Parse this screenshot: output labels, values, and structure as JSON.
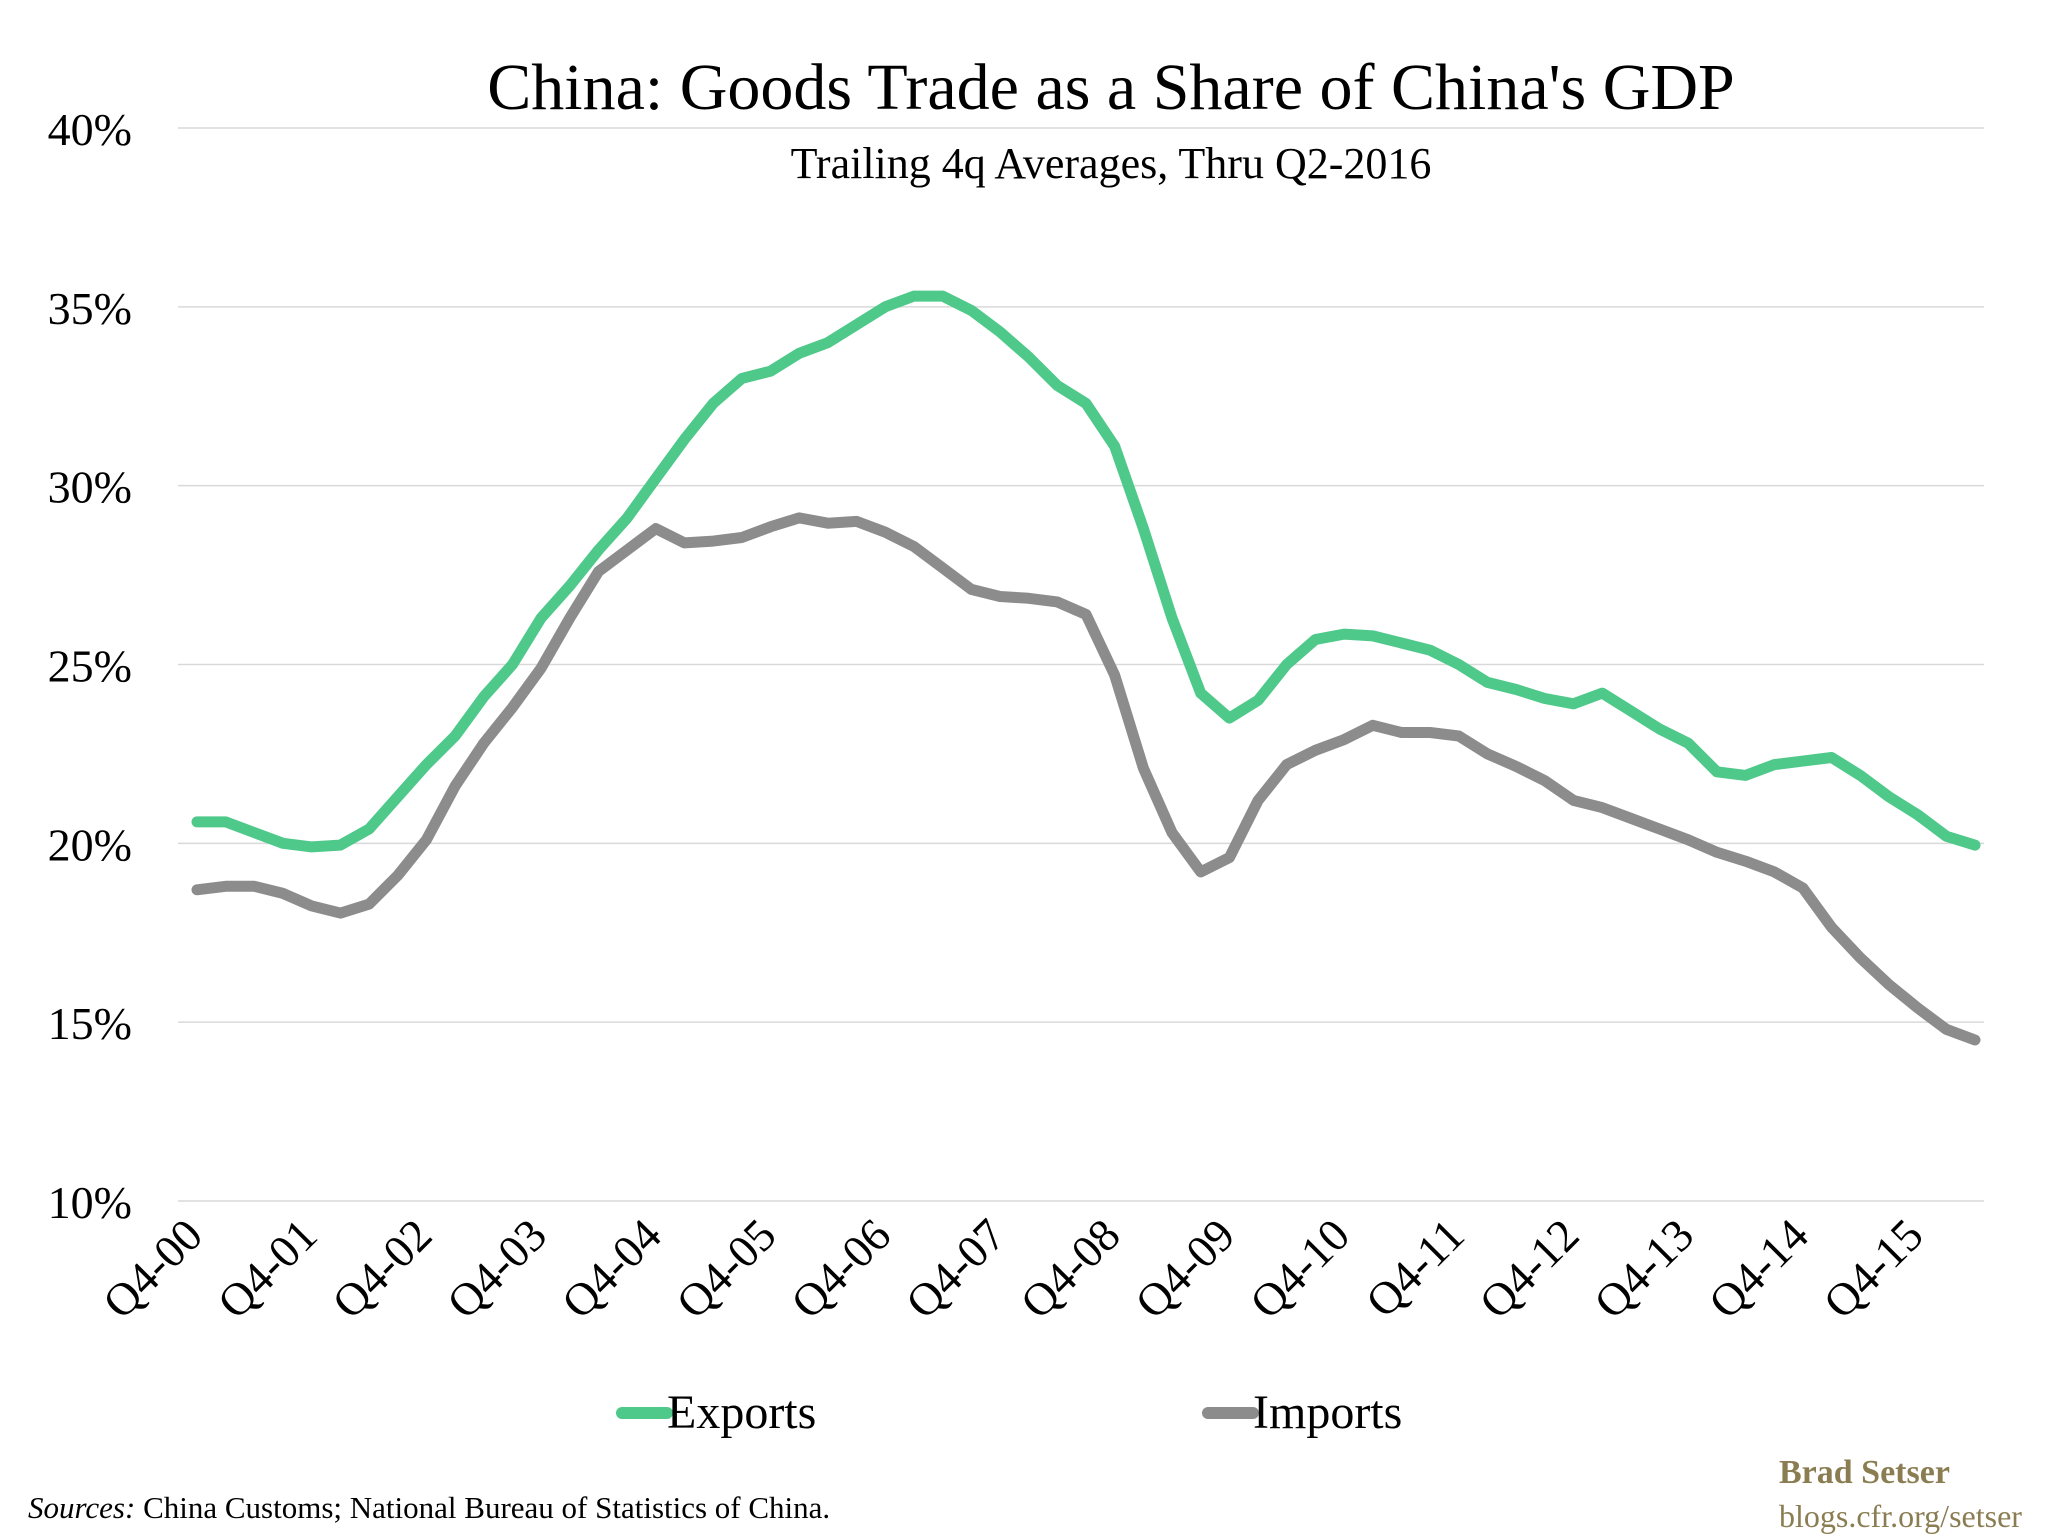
{
  "chart_data": {
    "type": "line",
    "title": "China: Goods Trade as a Share of China's GDP",
    "subtitle": "Trailing 4q Averages, Thru Q2-2016",
    "ylim": [
      10,
      40
    ],
    "y_ticks": [
      "10%",
      "15%",
      "20%",
      "25%",
      "30%",
      "35%",
      "40%"
    ],
    "y_tick_values": [
      10,
      15,
      20,
      25,
      30,
      35,
      40
    ],
    "x_tick_labels": [
      "Q4-00",
      "Q4-01",
      "Q4-02",
      "Q4-03",
      "Q4-04",
      "Q4-05",
      "Q4-06",
      "Q4-07",
      "Q4-08",
      "Q4-09",
      "Q4-10",
      "Q4-11",
      "Q4-12",
      "Q4-13",
      "Q4-14",
      "Q4-15"
    ],
    "x_period_count": 63,
    "grid": true,
    "legend_position": "bottom",
    "series": [
      {
        "name": "Exports",
        "color": "#4ec98a",
        "values": [
          20.6,
          20.6,
          20.3,
          20.0,
          19.9,
          19.95,
          20.4,
          21.3,
          22.2,
          23.0,
          24.1,
          25.0,
          26.3,
          27.2,
          28.2,
          29.1,
          30.2,
          31.3,
          32.3,
          33.0,
          33.2,
          33.7,
          34.0,
          34.5,
          35.0,
          35.3,
          35.3,
          34.9,
          34.3,
          33.6,
          32.8,
          32.3,
          31.1,
          28.8,
          26.3,
          24.2,
          23.5,
          24.0,
          25.0,
          25.7,
          25.85,
          25.8,
          25.6,
          25.4,
          25.0,
          24.5,
          24.3,
          24.05,
          23.9,
          24.2,
          23.7,
          23.2,
          22.8,
          22.0,
          21.9,
          22.2,
          22.3,
          22.4,
          21.9,
          21.3,
          20.8,
          20.2,
          19.95
        ]
      },
      {
        "name": "Imports",
        "color": "#8c8c8c",
        "values": [
          18.7,
          18.8,
          18.8,
          18.6,
          18.25,
          18.05,
          18.3,
          19.1,
          20.1,
          21.6,
          22.8,
          23.8,
          24.9,
          26.3,
          27.6,
          28.2,
          28.8,
          28.4,
          28.45,
          28.55,
          28.85,
          29.1,
          28.95,
          29.0,
          28.7,
          28.3,
          27.7,
          27.1,
          26.9,
          26.85,
          26.75,
          26.4,
          24.7,
          22.1,
          20.3,
          19.2,
          19.6,
          21.2,
          22.2,
          22.6,
          22.9,
          23.3,
          23.1,
          23.1,
          23.0,
          22.5,
          22.15,
          21.75,
          21.2,
          21.0,
          20.7,
          20.4,
          20.1,
          19.75,
          19.5,
          19.2,
          18.75,
          17.65,
          16.8,
          16.05,
          15.4,
          14.8,
          14.5
        ]
      }
    ]
  },
  "legend": {
    "exports_label": "Exports",
    "imports_label": "Imports"
  },
  "footer": {
    "sources_label": "Sources:",
    "sources_text": " China Customs; National Bureau of Statistics of China.",
    "brand_name": "Brad Setser",
    "brand_url": "blogs.cfr.org/setser"
  }
}
